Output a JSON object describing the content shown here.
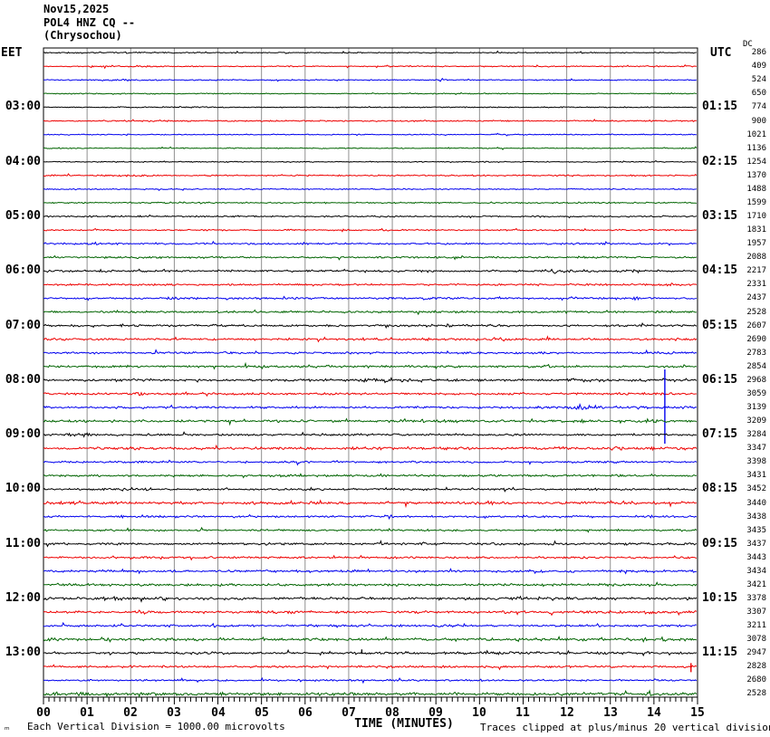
{
  "header": {
    "date": "Nov15,2025",
    "station": "POL4 HNZ CQ --",
    "location": "(Chrysochou)"
  },
  "left_axis_label": "EET",
  "right_axis_label": "UTC",
  "dc_label": "DC",
  "x_axis": {
    "title": "TIME (MINUTES)",
    "tick_labels": [
      "00",
      "01",
      "02",
      "03",
      "04",
      "05",
      "06",
      "07",
      "08",
      "09",
      "10",
      "11",
      "12",
      "13",
      "14",
      "15"
    ],
    "minutes_per_line": 15,
    "minor_ticks_per_minute": 8
  },
  "footer": {
    "micro_glyph": "ₘ",
    "scale_note": "Each Vertical Division = 1000.00 microvolts",
    "clip_note": "Traces clipped at plus/minus 20 vertical divisions"
  },
  "colors": {
    "black": "#000000",
    "red": "#ee0000",
    "blue": "#0000ee",
    "green": "#006400",
    "grid": "#909090",
    "border": "#000000"
  },
  "chart_data": {
    "type": "line",
    "title": "POL4 HNZ CQ -- (Chrysochou) helicorder, Nov15,2025",
    "xlabel": "TIME (MINUTES)",
    "x_range": [
      0,
      15
    ],
    "grid": "vertical-minute-lines",
    "color_cycle": [
      "black",
      "red",
      "blue",
      "green"
    ],
    "trace_count": 48,
    "traces": [
      {
        "eet": "",
        "utc": "",
        "dc": 286,
        "amp": 0.5,
        "events": [
          [
            1.8,
            3.5,
            0.7
          ],
          [
            12.35,
            0.12,
            2
          ]
        ],
        "spikes": []
      },
      {
        "eet": "",
        "utc": "",
        "dc": 409,
        "amp": 0.55,
        "events": [
          [
            2.2,
            3,
            0.8
          ]
        ],
        "spikes": []
      },
      {
        "eet": "",
        "utc": "",
        "dc": 524,
        "amp": 0.55,
        "events": [
          [
            2.0,
            2.5,
            0.8
          ],
          [
            12.1,
            0.1,
            1.5
          ]
        ],
        "spikes": []
      },
      {
        "eet": "",
        "utc": "",
        "dc": 650,
        "amp": 0.5,
        "events": [
          [
            2.3,
            2,
            0.7
          ]
        ],
        "spikes": []
      },
      {
        "eet": "03:00",
        "utc": "01:15",
        "dc": 774,
        "amp": 0.5,
        "events": [
          [
            3.0,
            4,
            0.6
          ]
        ],
        "spikes": []
      },
      {
        "eet": "",
        "utc": "",
        "dc": 900,
        "amp": 0.65,
        "events": [
          [
            2.0,
            2.5,
            0.8
          ]
        ],
        "spikes": []
      },
      {
        "eet": "",
        "utc": "",
        "dc": 1021,
        "amp": 0.5,
        "events": [],
        "spikes": []
      },
      {
        "eet": "",
        "utc": "",
        "dc": 1136,
        "amp": 0.5,
        "events": [],
        "spikes": []
      },
      {
        "eet": "04:00",
        "utc": "02:15",
        "dc": 1254,
        "amp": 0.5,
        "events": [
          [
            11.0,
            0.15,
            2
          ],
          [
            13.3,
            0.2,
            2
          ]
        ],
        "spikes": []
      },
      {
        "eet": "",
        "utc": "",
        "dc": 1370,
        "amp": 0.65,
        "events": [
          [
            2.0,
            2,
            0.9
          ]
        ],
        "spikes": []
      },
      {
        "eet": "",
        "utc": "",
        "dc": 1488,
        "amp": 0.55,
        "events": [],
        "spikes": []
      },
      {
        "eet": "",
        "utc": "",
        "dc": 1599,
        "amp": 0.65,
        "events": [
          [
            3.1,
            1.5,
            0.9
          ]
        ],
        "spikes": []
      },
      {
        "eet": "05:00",
        "utc": "03:15",
        "dc": 1710,
        "amp": 0.7,
        "events": [
          [
            1.5,
            2,
            0.9
          ]
        ],
        "spikes": []
      },
      {
        "eet": "",
        "utc": "",
        "dc": 1831,
        "amp": 0.7,
        "events": [
          [
            1.2,
            0.3,
            1.8
          ]
        ],
        "spikes": []
      },
      {
        "eet": "",
        "utc": "",
        "dc": 1957,
        "amp": 0.85,
        "events": [
          [
            1.2,
            0.4,
            2.5
          ],
          [
            12.9,
            0.3,
            2.5
          ],
          [
            14.2,
            0.15,
            2
          ]
        ],
        "spikes": []
      },
      {
        "eet": "",
        "utc": "",
        "dc": 2088,
        "amp": 0.85,
        "events": [
          [
            2.3,
            0.5,
            2
          ],
          [
            9.6,
            0.3,
            3
          ]
        ],
        "spikes": []
      },
      {
        "eet": "06:00",
        "utc": "04:15",
        "dc": 2217,
        "amp": 0.95,
        "events": [
          [
            2.2,
            0.4,
            2.2
          ],
          [
            11.9,
            1.4,
            2.2
          ],
          [
            13.6,
            0.3,
            2
          ]
        ],
        "spikes": []
      },
      {
        "eet": "",
        "utc": "",
        "dc": 2331,
        "amp": 0.9,
        "events": [
          [
            12.5,
            0.3,
            2
          ],
          [
            14.3,
            0.4,
            3.5
          ]
        ],
        "spikes": []
      },
      {
        "eet": "",
        "utc": "",
        "dc": 2437,
        "amp": 0.95,
        "events": [
          [
            1.0,
            0.3,
            2.2
          ],
          [
            8.8,
            0.3,
            2.2
          ],
          [
            12.1,
            0.3,
            2.2
          ],
          [
            13.6,
            0.3,
            2.6
          ]
        ],
        "spikes": []
      },
      {
        "eet": "",
        "utc": "",
        "dc": 2528,
        "amp": 0.95,
        "events": [
          [
            12.0,
            0.3,
            2
          ]
        ],
        "spikes": []
      },
      {
        "eet": "07:00",
        "utc": "05:15",
        "dc": 2607,
        "amp": 1.0,
        "events": [
          [
            9.3,
            0.3,
            2.6
          ],
          [
            10.4,
            0.3,
            2.2
          ]
        ],
        "spikes": []
      },
      {
        "eet": "",
        "utc": "",
        "dc": 2690,
        "amp": 1.05,
        "events": [
          [
            10.45,
            0.35,
            3.5
          ],
          [
            14.5,
            0.2,
            2.2
          ]
        ],
        "spikes": []
      },
      {
        "eet": "",
        "utc": "",
        "dc": 2783,
        "amp": 1.0,
        "events": [
          [
            7.0,
            0.3,
            1.8
          ]
        ],
        "spikes": []
      },
      {
        "eet": "",
        "utc": "",
        "dc": 2854,
        "amp": 1.0,
        "events": [
          [
            2.0,
            0.3,
            1.8
          ],
          [
            11.6,
            0.3,
            3.5
          ]
        ],
        "spikes": []
      },
      {
        "eet": "08:00",
        "utc": "06:15",
        "dc": 2968,
        "amp": 1.15,
        "events": [
          [
            7.8,
            1.6,
            2.2
          ],
          [
            12.4,
            1.0,
            2.6
          ],
          [
            14.2,
            0.1,
            2
          ]
        ],
        "spikes": []
      },
      {
        "eet": "",
        "utc": "",
        "dc": 3059,
        "amp": 1.0,
        "events": [
          [
            2.2,
            0.3,
            3.5
          ],
          [
            9.0,
            0.2,
            1.8
          ]
        ],
        "spikes": []
      },
      {
        "eet": "",
        "utc": "",
        "dc": 3139,
        "amp": 1.05,
        "events": [
          [
            12.4,
            0.9,
            3.5
          ]
        ],
        "spikes": [
          [
            14.25,
            42,
            40
          ]
        ]
      },
      {
        "eet": "",
        "utc": "",
        "dc": 3209,
        "amp": 1.15,
        "events": [
          [
            12.4,
            0.5,
            1.8
          ],
          [
            13.9,
            0.25,
            4
          ]
        ],
        "spikes": []
      },
      {
        "eet": "09:00",
        "utc": "07:15",
        "dc": 3284,
        "amp": 1.0,
        "events": [
          [
            0.9,
            1.6,
            1.8
          ]
        ],
        "spikes": []
      },
      {
        "eet": "",
        "utc": "",
        "dc": 3347,
        "amp": 1.3,
        "events": [
          [
            1.5,
            0.3,
            3.5
          ],
          [
            13.1,
            0.5,
            4
          ],
          [
            14.25,
            0.1,
            2.6
          ]
        ],
        "spikes": []
      },
      {
        "eet": "",
        "utc": "",
        "dc": 3398,
        "amp": 0.95,
        "events": [],
        "spikes": []
      },
      {
        "eet": "",
        "utc": "",
        "dc": 3431,
        "amp": 0.95,
        "events": [
          [
            2.4,
            0.2,
            1.8
          ]
        ],
        "spikes": []
      },
      {
        "eet": "10:00",
        "utc": "08:15",
        "dc": 3452,
        "amp": 0.95,
        "events": [
          [
            1.9,
            0.2,
            1.8
          ],
          [
            6.0,
            0.2,
            1.8
          ]
        ],
        "spikes": []
      },
      {
        "eet": "",
        "utc": "",
        "dc": 3440,
        "amp": 1.25,
        "events": [
          [
            0.9,
            2,
            1.6
          ],
          [
            10.3,
            0.2,
            2.2
          ]
        ],
        "spikes": []
      },
      {
        "eet": "",
        "utc": "",
        "dc": 3438,
        "amp": 0.95,
        "events": [
          [
            7.9,
            0.35,
            3.5
          ],
          [
            13.9,
            0.3,
            2.2
          ]
        ],
        "spikes": []
      },
      {
        "eet": "",
        "utc": "",
        "dc": 3435,
        "amp": 0.9,
        "events": [
          [
            12.5,
            0.15,
            2.6
          ]
        ],
        "spikes": []
      },
      {
        "eet": "11:00",
        "utc": "09:15",
        "dc": 3437,
        "amp": 1.05,
        "events": [
          [
            7.85,
            0.3,
            2.6
          ],
          [
            9.9,
            0.2,
            2.2
          ],
          [
            13.6,
            0.15,
            1.8
          ]
        ],
        "spikes": []
      },
      {
        "eet": "",
        "utc": "",
        "dc": 3443,
        "amp": 0.95,
        "events": [
          [
            7.3,
            0.3,
            1.8
          ],
          [
            13.8,
            0.2,
            1.8
          ]
        ],
        "spikes": []
      },
      {
        "eet": "",
        "utc": "",
        "dc": 3434,
        "amp": 1.05,
        "events": [
          [
            11.3,
            0.4,
            2.6
          ],
          [
            12.1,
            0.3,
            2.6
          ],
          [
            13.2,
            0.2,
            2.2
          ]
        ],
        "spikes": []
      },
      {
        "eet": "",
        "utc": "",
        "dc": 3421,
        "amp": 1.15,
        "events": [
          [
            11.5,
            0.5,
            1.8
          ],
          [
            14.3,
            0.3,
            2.2
          ]
        ],
        "spikes": []
      },
      {
        "eet": "12:00",
        "utc": "10:15",
        "dc": 3378,
        "amp": 1.25,
        "events": [
          [
            1.7,
            0.4,
            2.2
          ],
          [
            2.7,
            0.3,
            2.2
          ],
          [
            4.0,
            0.3,
            2
          ],
          [
            7.3,
            0.2,
            2.2
          ],
          [
            10.9,
            0.3,
            2
          ]
        ],
        "spikes": []
      },
      {
        "eet": "",
        "utc": "",
        "dc": 3307,
        "amp": 1.15,
        "events": [
          [
            2.3,
            0.5,
            1.8
          ],
          [
            3.5,
            0.3,
            2.2
          ],
          [
            10.6,
            0.4,
            2.6
          ],
          [
            13.9,
            0.4,
            2.6
          ]
        ],
        "spikes": []
      },
      {
        "eet": "",
        "utc": "",
        "dc": 3211,
        "amp": 1.05,
        "events": [
          [
            3.9,
            0.25,
            2.6
          ],
          [
            8.2,
            0.3,
            1.8
          ]
        ],
        "spikes": []
      },
      {
        "eet": "",
        "utc": "",
        "dc": 3078,
        "amp": 1.25,
        "events": [
          [
            0.3,
            0.4,
            2.2
          ],
          [
            1.5,
            0.5,
            2.2
          ],
          [
            12.8,
            0.25,
            2.6
          ],
          [
            14.2,
            0.3,
            2.6
          ]
        ],
        "spikes": []
      },
      {
        "eet": "13:00",
        "utc": "11:15",
        "dc": 2947,
        "amp": 1.2,
        "events": [
          [
            10.8,
            3,
            1.3
          ],
          [
            12.0,
            0.5,
            1.8
          ]
        ],
        "spikes": [
          [
            7.3,
            4,
            1
          ]
        ]
      },
      {
        "eet": "",
        "utc": "",
        "dc": 2828,
        "amp": 1.0,
        "events": [
          [
            7.1,
            0.2,
            2.6
          ]
        ],
        "spikes": [
          [
            14.85,
            4,
            6
          ]
        ]
      },
      {
        "eet": "",
        "utc": "",
        "dc": 2680,
        "amp": 0.85,
        "events": [
          [
            9.2,
            0.3,
            1.8
          ]
        ],
        "spikes": []
      },
      {
        "eet": "",
        "utc": "",
        "dc": 2528,
        "amp": 1.35,
        "events": [
          [
            0.9,
            1.6,
            2.2
          ],
          [
            6.4,
            0.3,
            2.2
          ],
          [
            7.3,
            0.3,
            2.2
          ],
          [
            10.2,
            0.4,
            1.8
          ],
          [
            13.9,
            0.3,
            2.6
          ]
        ],
        "spikes": []
      }
    ]
  }
}
